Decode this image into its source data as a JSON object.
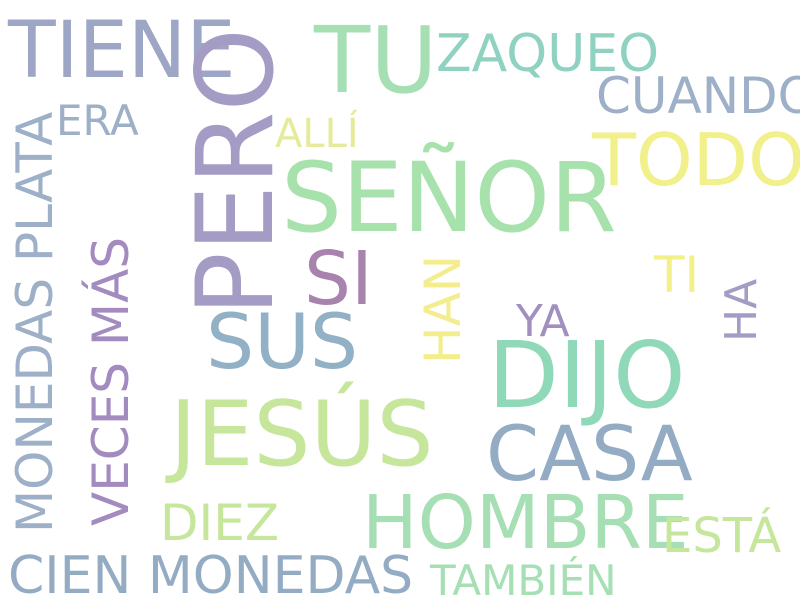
{
  "words": {
    "tiene": {
      "text": "TIENE",
      "color": "#9ea6c6"
    },
    "tu": {
      "text": "TU",
      "color": "#a6dfb4"
    },
    "zaqueo": {
      "text": "ZAQUEO",
      "color": "#8fd2c2"
    },
    "cuando": {
      "text": "CUANDO",
      "color": "#9db0c8"
    },
    "era": {
      "text": "ERA",
      "color": "#9db0c8"
    },
    "pero": {
      "text": "PERO",
      "color": "#a49cc4"
    },
    "alli": {
      "text": "ALLÍ",
      "color": "#e5eb9a"
    },
    "todo": {
      "text": "TODO",
      "color": "#f1f08a"
    },
    "senor": {
      "text": "SEÑOR",
      "color": "#a7e1ab"
    },
    "monedas_plata": {
      "text": "MONEDAS PLATA",
      "color": "#9db0c8"
    },
    "veces_mas": {
      "text": "VECES MÁS",
      "color": "#a38bbf"
    },
    "si": {
      "text": "SI",
      "color": "#a883ad"
    },
    "ti": {
      "text": "TI",
      "color": "#f3f08a"
    },
    "sus": {
      "text": "SUS",
      "color": "#92b0c6"
    },
    "han": {
      "text": "HAN",
      "color": "#f3ed8e"
    },
    "ya": {
      "text": "YA",
      "color": "#a18fc0"
    },
    "ha": {
      "text": "HA",
      "color": "#a49cc4"
    },
    "dijo": {
      "text": "DIJO",
      "color": "#8fd8b8"
    },
    "jesus": {
      "text": "JESÚS",
      "color": "#c6e69c"
    },
    "casa": {
      "text": "CASA",
      "color": "#93acc4"
    },
    "diez": {
      "text": "DIEZ",
      "color": "#c6e69c"
    },
    "hombre": {
      "text": "HOMBRE",
      "color": "#a6dfb4"
    },
    "esta": {
      "text": "ESTÁ",
      "color": "#c6e69c"
    },
    "cien_monedas": {
      "text": "CIEN MONEDAS",
      "color": "#93acc4"
    },
    "tambien": {
      "text": "TAMBIÉN",
      "color": "#a6dfb4"
    }
  }
}
